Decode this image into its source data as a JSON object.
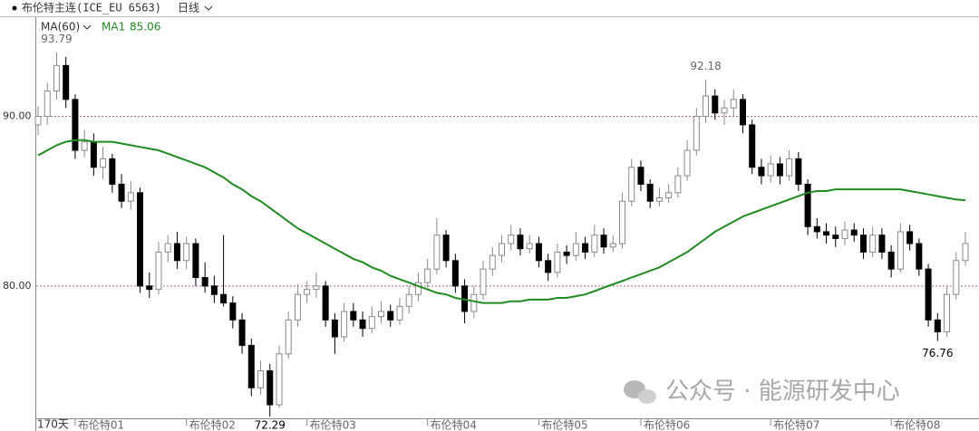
{
  "header": {
    "symbol": "布伦特主连(ICE_EU 6563)",
    "period": "日线",
    "indicator": "MA(60)"
  },
  "chart_data": {
    "type": "candlestick",
    "ohlc": [
      [
        89.5,
        90.6,
        88.9,
        90.0
      ],
      [
        90.0,
        92.0,
        89.5,
        91.5
      ],
      [
        91.5,
        93.79,
        91.0,
        93.0
      ],
      [
        93.0,
        93.5,
        90.5,
        91.0
      ],
      [
        91.0,
        91.3,
        87.5,
        88.0
      ],
      [
        88.0,
        89.2,
        87.6,
        88.5
      ],
      [
        88.5,
        89.0,
        86.5,
        87.0
      ],
      [
        87.0,
        88.2,
        86.3,
        87.5
      ],
      [
        87.5,
        87.8,
        85.5,
        86.0
      ],
      [
        86.0,
        86.6,
        84.6,
        85.0
      ],
      [
        85.0,
        86.2,
        84.5,
        85.5
      ],
      [
        85.5,
        85.8,
        79.6,
        80.0
      ],
      [
        80.0,
        80.8,
        79.3,
        79.8
      ],
      [
        79.8,
        82.6,
        79.5,
        82.0
      ],
      [
        82.0,
        83.0,
        81.4,
        82.5
      ],
      [
        82.5,
        83.2,
        81.0,
        81.5
      ],
      [
        81.5,
        82.9,
        81.0,
        82.5
      ],
      [
        82.5,
        82.8,
        80.0,
        80.5
      ],
      [
        80.5,
        81.4,
        79.6,
        80.0
      ],
      [
        80.0,
        80.6,
        79.0,
        79.5
      ],
      [
        79.5,
        83.0,
        78.8,
        79.0
      ],
      [
        79.0,
        79.4,
        77.5,
        78.0
      ],
      [
        78.0,
        78.4,
        76.0,
        76.5
      ],
      [
        76.5,
        76.9,
        73.5,
        74.0
      ],
      [
        74.0,
        75.6,
        73.6,
        75.0
      ],
      [
        75.0,
        75.4,
        72.29,
        73.0
      ],
      [
        73.0,
        76.5,
        72.8,
        76.0
      ],
      [
        76.0,
        78.5,
        75.7,
        78.0
      ],
      [
        78.0,
        80.1,
        77.6,
        79.5
      ],
      [
        79.5,
        80.3,
        79.0,
        79.8
      ],
      [
        79.8,
        80.8,
        79.3,
        80.0
      ],
      [
        80.0,
        80.3,
        77.6,
        78.0
      ],
      [
        78.0,
        78.4,
        76.0,
        77.0
      ],
      [
        77.0,
        79.0,
        76.7,
        78.5
      ],
      [
        78.5,
        79.0,
        77.6,
        78.0
      ],
      [
        78.0,
        78.5,
        77.0,
        77.5
      ],
      [
        77.5,
        78.8,
        77.2,
        78.2
      ],
      [
        78.2,
        79.1,
        77.8,
        78.5
      ],
      [
        78.5,
        78.9,
        77.6,
        78.0
      ],
      [
        78.0,
        79.3,
        77.7,
        78.8
      ],
      [
        78.8,
        80.0,
        78.4,
        79.5
      ],
      [
        79.5,
        80.8,
        79.1,
        80.2
      ],
      [
        80.2,
        81.6,
        79.9,
        81.0
      ],
      [
        81.0,
        84.0,
        80.7,
        83.0
      ],
      [
        83.0,
        83.3,
        81.1,
        81.5
      ],
      [
        81.5,
        81.9,
        79.6,
        80.0
      ],
      [
        80.0,
        80.4,
        77.8,
        78.5
      ],
      [
        78.5,
        80.0,
        78.1,
        79.5
      ],
      [
        79.5,
        81.5,
        79.2,
        81.0
      ],
      [
        81.0,
        82.3,
        80.6,
        81.8
      ],
      [
        81.8,
        83.0,
        81.4,
        82.5
      ],
      [
        82.5,
        83.6,
        82.1,
        83.0
      ],
      [
        83.0,
        83.4,
        81.8,
        82.2
      ],
      [
        82.2,
        83.0,
        81.9,
        82.5
      ],
      [
        82.5,
        82.9,
        81.1,
        81.5
      ],
      [
        81.5,
        81.9,
        80.3,
        80.8
      ],
      [
        80.8,
        82.5,
        80.5,
        82.0
      ],
      [
        82.0,
        82.4,
        81.3,
        81.8
      ],
      [
        81.8,
        83.2,
        81.5,
        82.5
      ],
      [
        82.5,
        82.9,
        81.6,
        82.0
      ],
      [
        82.0,
        83.6,
        81.7,
        83.0
      ],
      [
        83.0,
        83.4,
        81.9,
        82.3
      ],
      [
        82.3,
        83.0,
        82.0,
        82.5
      ],
      [
        82.5,
        85.5,
        82.2,
        85.0
      ],
      [
        85.0,
        87.5,
        84.7,
        87.0
      ],
      [
        87.0,
        87.4,
        85.6,
        86.0
      ],
      [
        86.0,
        86.3,
        84.6,
        85.0
      ],
      [
        85.0,
        85.8,
        84.7,
        85.2
      ],
      [
        85.2,
        86.0,
        84.9,
        85.5
      ],
      [
        85.5,
        87.0,
        85.2,
        86.5
      ],
      [
        86.5,
        88.6,
        86.2,
        88.0
      ],
      [
        88.0,
        90.5,
        87.7,
        90.0
      ],
      [
        90.0,
        92.18,
        89.6,
        91.2
      ],
      [
        91.2,
        91.6,
        89.8,
        90.2
      ],
      [
        90.2,
        91.0,
        89.5,
        90.5
      ],
      [
        90.5,
        91.6,
        90.0,
        91.0
      ],
      [
        91.0,
        91.3,
        89.0,
        89.5
      ],
      [
        89.5,
        89.8,
        86.6,
        87.0
      ],
      [
        87.0,
        87.5,
        86.0,
        86.5
      ],
      [
        86.5,
        87.7,
        86.1,
        87.2
      ],
      [
        87.2,
        87.6,
        86.0,
        86.5
      ],
      [
        86.5,
        88.0,
        86.2,
        87.5
      ],
      [
        87.5,
        87.9,
        85.6,
        86.0
      ],
      [
        86.0,
        86.3,
        83.0,
        83.5
      ],
      [
        83.5,
        84.0,
        82.8,
        83.2
      ],
      [
        83.2,
        83.7,
        82.5,
        83.0
      ],
      [
        83.0,
        83.5,
        82.3,
        82.8
      ],
      [
        82.8,
        83.8,
        82.4,
        83.3
      ],
      [
        83.3,
        83.7,
        82.6,
        83.0
      ],
      [
        83.0,
        83.4,
        81.6,
        82.0
      ],
      [
        82.0,
        83.5,
        81.7,
        83.0
      ],
      [
        83.0,
        83.4,
        81.6,
        82.0
      ],
      [
        82.0,
        82.4,
        80.5,
        81.0
      ],
      [
        81.0,
        83.7,
        80.8,
        83.2
      ],
      [
        83.2,
        83.6,
        82.1,
        82.5
      ],
      [
        82.5,
        82.8,
        80.6,
        81.0
      ],
      [
        81.0,
        81.3,
        77.6,
        78.0
      ],
      [
        78.0,
        78.4,
        76.76,
        77.3
      ],
      [
        77.3,
        80.0,
        77.0,
        79.5
      ],
      [
        79.5,
        82.0,
        79.2,
        81.5
      ],
      [
        81.5,
        83.2,
        81.2,
        82.5
      ]
    ],
    "up_color": "#ffffff",
    "up_stroke": "#8a8a8a",
    "down_color": "#000000",
    "ma": {
      "name": "MA1",
      "color": "#1e8c1e",
      "values": [
        87.7,
        88.0,
        88.3,
        88.5,
        88.6,
        88.6,
        88.5,
        88.5,
        88.5,
        88.4,
        88.3,
        88.2,
        88.1,
        88.0,
        87.8,
        87.6,
        87.4,
        87.2,
        87.0,
        86.7,
        86.4,
        86.0,
        85.7,
        85.3,
        85.0,
        84.6,
        84.2,
        83.8,
        83.4,
        83.1,
        82.8,
        82.5,
        82.2,
        81.9,
        81.6,
        81.4,
        81.1,
        80.9,
        80.6,
        80.4,
        80.2,
        80.0,
        79.8,
        79.6,
        79.5,
        79.3,
        79.2,
        79.1,
        79.0,
        79.0,
        79.0,
        79.1,
        79.1,
        79.2,
        79.2,
        79.2,
        79.3,
        79.3,
        79.4,
        79.5,
        79.7,
        79.9,
        80.1,
        80.3,
        80.5,
        80.7,
        80.9,
        81.1,
        81.4,
        81.7,
        82.0,
        82.4,
        82.8,
        83.2,
        83.5,
        83.8,
        84.1,
        84.3,
        84.5,
        84.7,
        84.9,
        85.1,
        85.3,
        85.5,
        85.6,
        85.6,
        85.7,
        85.7,
        85.7,
        85.7,
        85.7,
        85.7,
        85.7,
        85.7,
        85.6,
        85.5,
        85.4,
        85.3,
        85.2,
        85.1,
        85.06
      ]
    },
    "ylim": [
      72.2,
      95.9
    ],
    "yticks": [
      {
        "value": 80,
        "label": "80.00"
      },
      {
        "value": 90,
        "label": "90.00"
      }
    ],
    "grid": true,
    "x_axis": {
      "span_label": "170天",
      "months": [
        {
          "index": 4,
          "label": "布伦特01"
        },
        {
          "index": 16,
          "label": "布伦特02"
        },
        {
          "index": 29,
          "label": "布伦特03"
        },
        {
          "index": 42,
          "label": "布伦特04"
        },
        {
          "index": 54,
          "label": "布伦特05"
        },
        {
          "index": 65,
          "label": "布伦特06"
        },
        {
          "index": 79,
          "label": "布伦特07"
        },
        {
          "index": 92,
          "label": "布伦特08"
        }
      ]
    },
    "watermark": "公众号 · 能源研发中心"
  }
}
